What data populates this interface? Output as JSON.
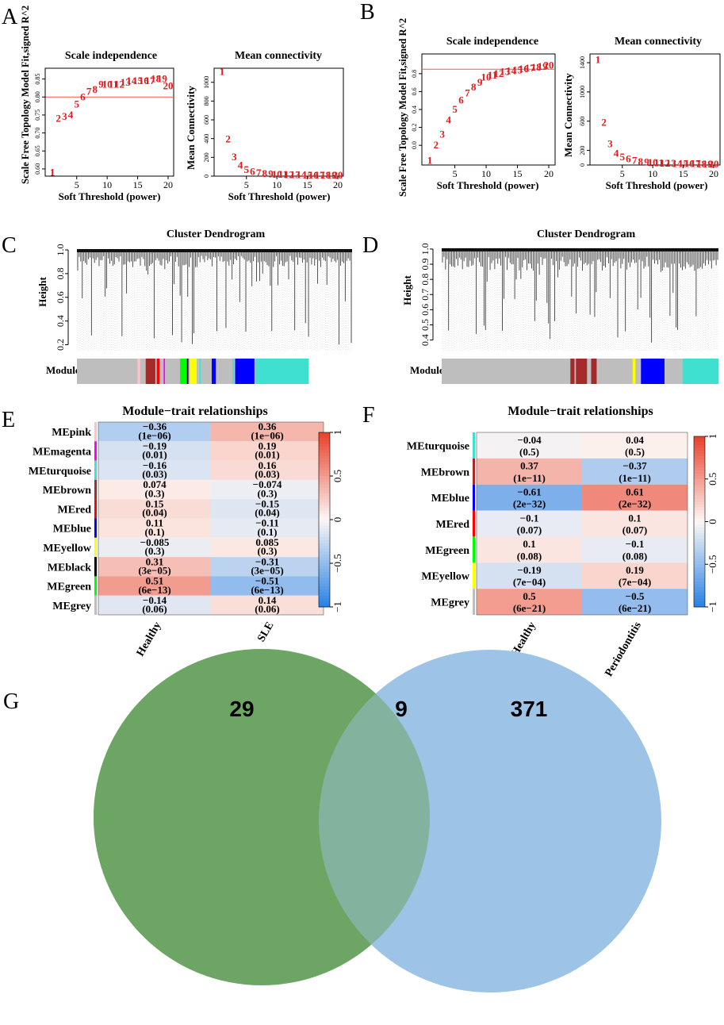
{
  "colors": {
    "axis": "#000000",
    "pointText": "#e31a1c",
    "cutLine": "#f25a4f",
    "venn_left": "#6ea564",
    "venn_right": "#9dc3e6",
    "heat_neg": "#2b83e6",
    "heat_mid": "#fdf7f4",
    "heat_pos": "#e8432d"
  },
  "panel_labels": {
    "A": "A",
    "B": "B",
    "C": "C",
    "D": "D",
    "E": "E",
    "F": "F",
    "G": "G"
  },
  "chart_data": [
    {
      "id": "A_scale",
      "panel": "A",
      "type": "scatter",
      "title": "Scale independence",
      "xlabel": "Soft Threshold (power)",
      "ylabel": "Scale Free Topology Model Fit,signed R^2",
      "xlim": [
        1,
        20
      ],
      "ylim": [
        0.58,
        0.88
      ],
      "xticks": [
        5,
        10,
        15,
        20
      ],
      "yticks": [
        0.6,
        0.65,
        0.7,
        0.75,
        0.8,
        0.85
      ],
      "ytick_labels": [
        "0.60",
        "0.65",
        "0.70",
        "0.75",
        "0.80",
        "0.85"
      ],
      "hline": 0.8,
      "x": [
        1,
        2,
        3,
        4,
        5,
        6,
        7,
        8,
        9,
        10,
        11,
        12,
        13,
        14,
        15,
        16,
        17,
        18,
        19,
        20
      ],
      "y": [
        0.59,
        0.74,
        0.745,
        0.75,
        0.78,
        0.8,
        0.815,
        0.82,
        0.835,
        0.835,
        0.835,
        0.835,
        0.84,
        0.845,
        0.845,
        0.845,
        0.845,
        0.85,
        0.85,
        0.83
      ]
    },
    {
      "id": "A_mean",
      "panel": "A",
      "type": "scatter",
      "title": "Mean connectivity",
      "xlabel": "Soft Threshold (power)",
      "ylabel": "Mean Connectivity",
      "xlim": [
        1,
        20
      ],
      "ylim": [
        0,
        1150
      ],
      "xticks": [
        5,
        10,
        15,
        20
      ],
      "yticks": [
        0,
        200,
        400,
        600,
        800,
        1000
      ],
      "ytick_labels": [
        "0",
        "200",
        "400",
        "600",
        "800",
        "1000"
      ],
      "x": [
        1,
        2,
        3,
        4,
        5,
        6,
        7,
        8,
        9,
        10,
        11,
        12,
        13,
        14,
        15,
        16,
        17,
        18,
        19,
        20
      ],
      "y": [
        1110,
        395,
        205,
        115,
        68,
        45,
        32,
        25,
        20,
        17,
        15,
        13,
        12,
        11,
        10,
        9,
        9,
        8,
        8,
        7
      ]
    },
    {
      "id": "B_scale",
      "panel": "B",
      "type": "scatter",
      "title": "Scale independence",
      "xlabel": "Soft Threshold (power)",
      "ylabel": "Scale Free Topology Model Fit,signed R^2",
      "xlim": [
        1,
        20
      ],
      "ylim": [
        -0.22,
        1.02
      ],
      "xticks": [
        5,
        10,
        15,
        20
      ],
      "yticks": [
        0.0,
        0.2,
        0.4,
        0.6,
        0.8
      ],
      "ytick_labels": [
        "0.0",
        "0.2",
        "0.4",
        "0.6",
        "0.8"
      ],
      "hline": 0.85,
      "x": [
        1,
        2,
        3,
        4,
        5,
        6,
        7,
        8,
        9,
        10,
        11,
        12,
        13,
        14,
        15,
        16,
        17,
        18,
        19,
        20
      ],
      "y": [
        -0.17,
        0.0,
        0.12,
        0.28,
        0.4,
        0.5,
        0.58,
        0.65,
        0.7,
        0.76,
        0.78,
        0.8,
        0.82,
        0.83,
        0.84,
        0.85,
        0.86,
        0.87,
        0.88,
        0.89
      ]
    },
    {
      "id": "B_mean",
      "panel": "B",
      "type": "scatter",
      "title": "Mean connectivity",
      "xlabel": "Soft Threshold (power)",
      "ylabel": "Mean Connectivity",
      "xlim": [
        1,
        20
      ],
      "ylim": [
        0,
        1520
      ],
      "xticks": [
        5,
        10,
        15,
        20
      ],
      "yticks": [
        0,
        200,
        600,
        1000,
        1400
      ],
      "ytick_labels": [
        "0",
        "200",
        "600",
        "1000",
        "1400"
      ],
      "x": [
        1,
        2,
        3,
        4,
        5,
        6,
        7,
        8,
        9,
        10,
        11,
        12,
        13,
        14,
        15,
        16,
        17,
        18,
        19,
        20
      ],
      "y": [
        1440,
        580,
        290,
        160,
        110,
        80,
        60,
        45,
        36,
        30,
        25,
        22,
        20,
        18,
        16,
        15,
        14,
        13,
        12,
        12
      ]
    },
    {
      "id": "C_dendro",
      "panel": "C",
      "type": "dendrogram",
      "title": "Cluster Dendrogram",
      "ylabel": "Height",
      "yticks": [
        0.2,
        0.4,
        0.6,
        0.8,
        1.0
      ],
      "ytick_labels": [
        "0.2",
        "0.4",
        "0.6",
        "0.8",
        "1.0"
      ],
      "ylim": [
        0.15,
        1.02
      ],
      "colorbar_label": "Module colors",
      "module_colors": [
        {
          "color": "#bebebe",
          "width": 0.22
        },
        {
          "color": "#ffc0cb",
          "width": 0.01
        },
        {
          "color": "#bebebe",
          "width": 0.02
        },
        {
          "color": "#a52a2a",
          "width": 0.035
        },
        {
          "color": "#bebebe",
          "width": 0.005
        },
        {
          "color": "#ff0000",
          "width": 0.01
        },
        {
          "color": "#bebebe",
          "width": 0.015
        },
        {
          "color": "#ff00ff",
          "width": 0.005
        },
        {
          "color": "#bebebe",
          "width": 0.055
        },
        {
          "color": "#00ff00",
          "width": 0.025
        },
        {
          "color": "#000000",
          "width": 0.005
        },
        {
          "color": "#bebebe",
          "width": 0.005
        },
        {
          "color": "#ffff00",
          "width": 0.025
        },
        {
          "color": "#bebebe",
          "width": 0.01
        },
        {
          "color": "#40e0d0",
          "width": 0.005
        },
        {
          "color": "#bebebe",
          "width": 0.04
        },
        {
          "color": "#0000ff",
          "width": 0.015
        },
        {
          "color": "#bebebe",
          "width": 0.06
        },
        {
          "color": "#40e0d0",
          "width": 0.005
        },
        {
          "color": "#bebebe",
          "width": 0.005
        },
        {
          "color": "#0000ff",
          "width": 0.07
        },
        {
          "color": "#bebebe",
          "width": 0.005
        },
        {
          "color": "#40e0d0",
          "width": 0.192
        }
      ]
    },
    {
      "id": "D_dendro",
      "panel": "D",
      "type": "dendrogram",
      "title": "Cluster Dendrogram",
      "ylabel": "Height",
      "yticks": [
        0.4,
        0.5,
        0.6,
        0.7,
        0.8,
        0.9,
        1.0
      ],
      "ytick_labels": [
        "0.4",
        "0.5",
        "0.6",
        "0.7",
        "0.8",
        "0.9",
        "1.0"
      ],
      "ylim": [
        0.33,
        1.01
      ],
      "colorbar_label": "Module colors",
      "module_colors": [
        {
          "color": "#bebebe",
          "width": 0.465
        },
        {
          "color": "#a52a2a",
          "width": 0.015
        },
        {
          "color": "#bebebe",
          "width": 0.005
        },
        {
          "color": "#a52a2a",
          "width": 0.04
        },
        {
          "color": "#bebebe",
          "width": 0.015
        },
        {
          "color": "#a52a2a",
          "width": 0.02
        },
        {
          "color": "#bebebe",
          "width": 0.13
        },
        {
          "color": "#ffff00",
          "width": 0.01
        },
        {
          "color": "#bebebe",
          "width": 0.02
        },
        {
          "color": "#0000ff",
          "width": 0.085
        },
        {
          "color": "#bebebe",
          "width": 0.065
        },
        {
          "color": "#40e0d0",
          "width": 0.13
        }
      ]
    },
    {
      "id": "E_heatmap",
      "panel": "E",
      "type": "heatmap",
      "title": "Module−trait relationships",
      "columns": [
        "Healthy",
        "SLE"
      ],
      "rows": [
        {
          "label": "MEpink",
          "swatch": "#ffc0cb",
          "values": [
            -0.36,
            0.36
          ],
          "texts": [
            "−0.36",
            "0.36"
          ],
          "pvals": [
            "(1e−06)",
            "(1e−06)"
          ]
        },
        {
          "label": "MEmagenta",
          "swatch": "#ff00ff",
          "values": [
            -0.19,
            0.19
          ],
          "texts": [
            "−0.19",
            "0.19"
          ],
          "pvals": [
            "(0.01)",
            "(0.01)"
          ]
        },
        {
          "label": "MEturquoise",
          "swatch": "#40e0d0",
          "values": [
            -0.16,
            0.16
          ],
          "texts": [
            "−0.16",
            "0.16"
          ],
          "pvals": [
            "(0.03)",
            "(0.03)"
          ]
        },
        {
          "label": "MEbrown",
          "swatch": "#a52a2a",
          "values": [
            0.074,
            -0.074
          ],
          "texts": [
            "0.074",
            "−0.074"
          ],
          "pvals": [
            "(0.3)",
            "(0.3)"
          ]
        },
        {
          "label": "MEred",
          "swatch": "#ff0000",
          "values": [
            0.15,
            -0.15
          ],
          "texts": [
            "0.15",
            "−0.15"
          ],
          "pvals": [
            "(0.04)",
            "(0.04)"
          ]
        },
        {
          "label": "MEblue",
          "swatch": "#0000ff",
          "values": [
            0.11,
            -0.11
          ],
          "texts": [
            "0.11",
            "−0.11"
          ],
          "pvals": [
            "(0.1)",
            "(0.1)"
          ]
        },
        {
          "label": "MEyellow",
          "swatch": "#ffff00",
          "values": [
            -0.085,
            0.085
          ],
          "texts": [
            "−0.085",
            "0.085"
          ],
          "pvals": [
            "(0.3)",
            "(0.3)"
          ]
        },
        {
          "label": "MEblack",
          "swatch": "#000000",
          "values": [
            0.31,
            -0.31
          ],
          "texts": [
            "0.31",
            "−0.31"
          ],
          "pvals": [
            "(3e−05)",
            "(3e−05)"
          ]
        },
        {
          "label": "MEgreen",
          "swatch": "#00ff00",
          "values": [
            0.51,
            -0.51
          ],
          "texts": [
            "0.51",
            "−0.51"
          ],
          "pvals": [
            "(6e−13)",
            "(6e−13)"
          ]
        },
        {
          "label": "MEgrey",
          "swatch": "#bebebe",
          "values": [
            -0.14,
            0.14
          ],
          "texts": [
            "−0.14",
            "0.14"
          ],
          "pvals": [
            "(0.06)",
            "(0.06)"
          ]
        }
      ],
      "legend_ticks": [
        1,
        0.5,
        0,
        -0.5,
        -1
      ],
      "legend_labels": [
        "1",
        "0.5",
        "0",
        "−0.5",
        "−1"
      ]
    },
    {
      "id": "F_heatmap",
      "panel": "F",
      "type": "heatmap",
      "title": "Module−trait relationships",
      "columns": [
        "Healthy",
        "Periodontitis"
      ],
      "rows": [
        {
          "label": "MEturquoise",
          "swatch": "#40e0d0",
          "values": [
            -0.04,
            0.04
          ],
          "texts": [
            "−0.04",
            "0.04"
          ],
          "pvals": [
            "(0.5)",
            "(0.5)"
          ]
        },
        {
          "label": "MEbrown",
          "swatch": "#a52a2a",
          "values": [
            0.37,
            -0.37
          ],
          "texts": [
            "0.37",
            "−0.37"
          ],
          "pvals": [
            "(1e−11)",
            "(1e−11)"
          ]
        },
        {
          "label": "MEblue",
          "swatch": "#0000ff",
          "values": [
            -0.61,
            0.61
          ],
          "texts": [
            "−0.61",
            "0.61"
          ],
          "pvals": [
            "(2e−32)",
            "(2e−32)"
          ]
        },
        {
          "label": "MEred",
          "swatch": "#ff0000",
          "values": [
            -0.1,
            0.1
          ],
          "texts": [
            "−0.1",
            "0.1"
          ],
          "pvals": [
            "(0.07)",
            "(0.07)"
          ]
        },
        {
          "label": "MEgreen",
          "swatch": "#00ff00",
          "values": [
            0.1,
            -0.1
          ],
          "texts": [
            "0.1",
            "−0.1"
          ],
          "pvals": [
            "(0.08)",
            "(0.08)"
          ]
        },
        {
          "label": "MEyellow",
          "swatch": "#ffff00",
          "values": [
            -0.19,
            0.19
          ],
          "texts": [
            "−0.19",
            "0.19"
          ],
          "pvals": [
            "(7e−04)",
            "(7e−04)"
          ]
        },
        {
          "label": "MEgrey",
          "swatch": "#bebebe",
          "values": [
            0.5,
            -0.5
          ],
          "texts": [
            "0.5",
            "−0.5"
          ],
          "pvals": [
            "(6e−21)",
            "(6e−21)"
          ]
        }
      ],
      "legend_ticks": [
        1,
        0.5,
        0,
        -0.5,
        -1
      ],
      "legend_labels": [
        "1",
        "0.5",
        "0",
        "−0.5",
        "−1"
      ]
    },
    {
      "id": "G_venn",
      "panel": "G",
      "type": "venn",
      "sets": [
        "left",
        "right"
      ],
      "left_only": "29",
      "intersection": "9",
      "right_only": "371"
    }
  ]
}
